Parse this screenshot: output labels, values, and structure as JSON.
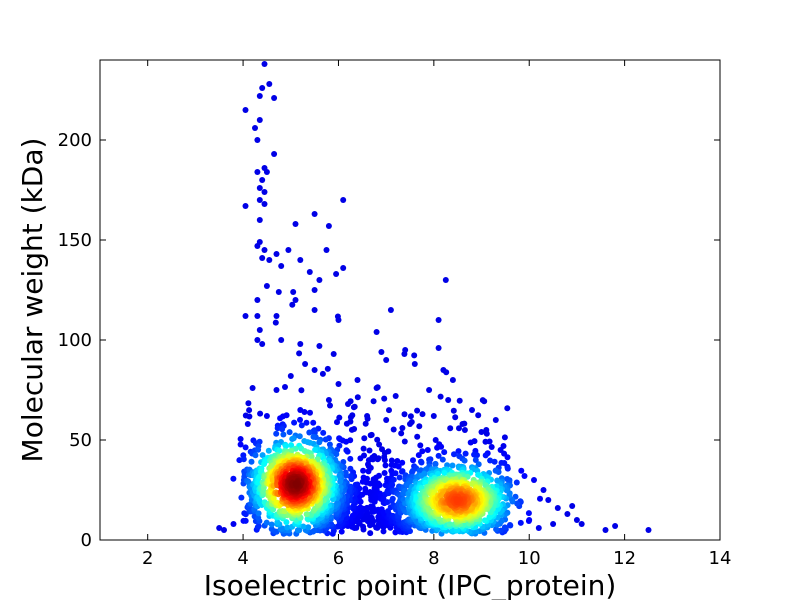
{
  "chart_data": {
    "type": "scatter",
    "title": "",
    "xlabel": "Isoelectric point (IPC_protein)",
    "ylabel": "Molecular weight (kDa)",
    "xlim": [
      1,
      14
    ],
    "ylim": [
      0,
      240
    ],
    "xticks": [
      2,
      4,
      6,
      8,
      10,
      12,
      14
    ],
    "yticks": [
      0,
      50,
      100,
      150,
      200
    ],
    "grid": false,
    "legend": "none",
    "colormap": "jet (point density)",
    "colors": {
      "low_density": "#0000aa",
      "mid_density": "#22e0e6",
      "high_density": "#b40000"
    },
    "density_clusters": [
      {
        "center": [
          5.1,
          28
        ],
        "spread": [
          0.45,
          11
        ],
        "peak_density": 1.0
      },
      {
        "center": [
          8.5,
          20
        ],
        "spread": [
          0.55,
          9
        ],
        "peak_density": 0.8
      }
    ],
    "points": [
      [
        4.45,
        238
      ],
      [
        4.4,
        226
      ],
      [
        4.55,
        228
      ],
      [
        4.35,
        222
      ],
      [
        4.65,
        221
      ],
      [
        4.05,
        215
      ],
      [
        4.35,
        210
      ],
      [
        4.25,
        206
      ],
      [
        4.3,
        200
      ],
      [
        4.65,
        193
      ],
      [
        4.45,
        186
      ],
      [
        4.3,
        184
      ],
      [
        4.5,
        184
      ],
      [
        4.4,
        180
      ],
      [
        4.35,
        176
      ],
      [
        4.45,
        174
      ],
      [
        4.35,
        170
      ],
      [
        4.05,
        167
      ],
      [
        4.45,
        168
      ],
      [
        4.35,
        160
      ],
      [
        6.1,
        170
      ],
      [
        5.5,
        163
      ],
      [
        5.1,
        158
      ],
      [
        5.8,
        157
      ],
      [
        4.35,
        149
      ],
      [
        4.3,
        147
      ],
      [
        4.45,
        145
      ],
      [
        4.95,
        145
      ],
      [
        4.4,
        141
      ],
      [
        4.55,
        140
      ],
      [
        4.7,
        143
      ],
      [
        5.2,
        140
      ],
      [
        4.8,
        137
      ],
      [
        6.1,
        136
      ],
      [
        5.75,
        145
      ],
      [
        5.4,
        134
      ],
      [
        4.5,
        127
      ],
      [
        4.75,
        124
      ],
      [
        5.05,
        124
      ],
      [
        4.3,
        120
      ],
      [
        5.1,
        120
      ],
      [
        5.95,
        133
      ],
      [
        5.6,
        130
      ],
      [
        5.5,
        125
      ],
      [
        4.05,
        112
      ],
      [
        4.3,
        112
      ],
      [
        4.7,
        112
      ],
      [
        5.5,
        115
      ],
      [
        6.0,
        110
      ],
      [
        7.1,
        115
      ],
      [
        8.1,
        110
      ],
      [
        8.25,
        130
      ],
      [
        4.35,
        105
      ],
      [
        6.8,
        104
      ],
      [
        4.3,
        100
      ],
      [
        4.4,
        98
      ],
      [
        4.8,
        100
      ],
      [
        5.2,
        98
      ],
      [
        5.6,
        97
      ],
      [
        5.9,
        93
      ],
      [
        6.9,
        94
      ],
      [
        7.4,
        95
      ],
      [
        8.1,
        96
      ],
      [
        7.0,
        90
      ],
      [
        7.6,
        88
      ],
      [
        8.2,
        85
      ],
      [
        8.4,
        80
      ],
      [
        4.2,
        76
      ],
      [
        4.7,
        75
      ],
      [
        5.0,
        82
      ],
      [
        5.3,
        88
      ],
      [
        5.5,
        85
      ],
      [
        6.0,
        78
      ],
      [
        6.4,
        80
      ],
      [
        6.8,
        76
      ],
      [
        7.2,
        72
      ],
      [
        7.9,
        75
      ],
      [
        8.3,
        70
      ],
      [
        8.8,
        65
      ],
      [
        9.3,
        60
      ],
      [
        9.1,
        55
      ],
      [
        4.1,
        58
      ],
      [
        4.5,
        62
      ],
      [
        5.2,
        65
      ],
      [
        5.8,
        70
      ],
      [
        6.2,
        68
      ],
      [
        6.6,
        62
      ],
      [
        7.0,
        60
      ],
      [
        7.5,
        58
      ],
      [
        8.0,
        62
      ],
      [
        8.6,
        58
      ],
      [
        9.0,
        54
      ],
      [
        9.4,
        45
      ],
      [
        9.9,
        32
      ],
      [
        10.1,
        30
      ],
      [
        10.3,
        25
      ],
      [
        10.4,
        20
      ],
      [
        10.6,
        16
      ],
      [
        10.8,
        13
      ],
      [
        10.9,
        17
      ],
      [
        11.0,
        10
      ],
      [
        11.1,
        8
      ],
      [
        11.6,
        5
      ],
      [
        11.8,
        7
      ],
      [
        12.5,
        5
      ],
      [
        3.5,
        6
      ],
      [
        3.6,
        5
      ],
      [
        3.8,
        8
      ],
      [
        10.2,
        6
      ],
      [
        10.5,
        8
      ],
      [
        10.0,
        10
      ]
    ]
  }
}
